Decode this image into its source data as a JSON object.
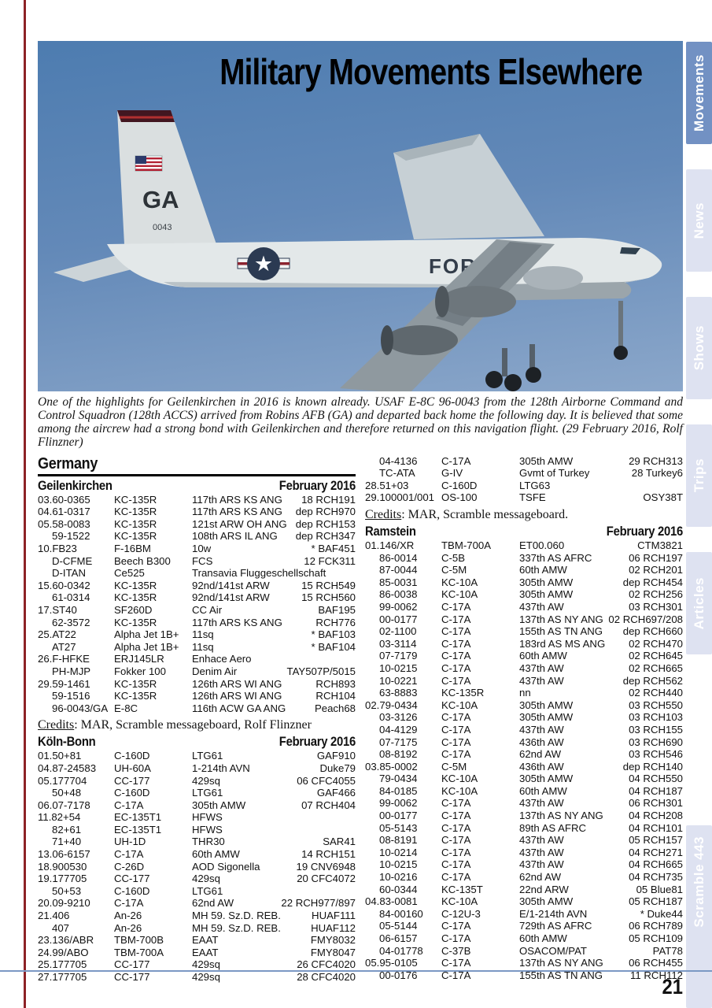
{
  "page": {
    "number": "21"
  },
  "header": {
    "title": "Military Movements Elsewhere"
  },
  "sidebar": {
    "active_color": "#7291c3",
    "inactive_color": "#dee2f1",
    "tabs": [
      {
        "label": "Movements",
        "active": true
      },
      {
        "label": "News",
        "active": false
      },
      {
        "label": "Shows",
        "active": false
      },
      {
        "label": "Trips",
        "active": false
      },
      {
        "label": "Articles",
        "active": false
      },
      {
        "label": "Scramble 443",
        "active": false
      }
    ]
  },
  "photo": {
    "tail_code": "GA",
    "tail_serial": "0043",
    "fuselage_text": "FORCE",
    "roundel": "us-star-roundel",
    "caption": "One of the highlights for Geilenkirchen in 2016 is known already. USAF E-8C 96-0043 from the 128th Airborne Command and Control Squadron (128th ACCS) arrived from Robins AFB (GA) and departed back home the following day. It is believed that some among the aircrew had a strong bond with Geilenkirchen and therefore returned on this navigation flight. (29 February 2016, Rolf Flinzner)"
  },
  "country_header": {
    "label": "Germany"
  },
  "credits": {
    "geilenkirchen": {
      "label": "Credits",
      "text": ": MAR, Scramble messageboard, Rolf Flinzner"
    },
    "koln_bonn": {
      "label": "Credits",
      "text": ": MAR, Scramble messageboard."
    }
  },
  "tables": {
    "geilenkirchen": {
      "location": "Geilenkirchen",
      "period": "February 2016",
      "rows": [
        [
          "03.60-0365",
          "KC-135R",
          "117th ARS KS ANG",
          "18 RCH191"
        ],
        [
          "04.61-0317",
          "KC-135R",
          "117th ARS KS ANG",
          "dep RCH970"
        ],
        [
          "05.58-0083",
          "KC-135R",
          "121st ARW OH ANG",
          "dep RCH153"
        ],
        [
          "59-1522",
          "KC-135R",
          "108th ARS IL ANG",
          "dep RCH347"
        ],
        [
          "10.FB23",
          "F-16BM",
          "10w",
          "* BAF451"
        ],
        [
          "D-CFME",
          "Beech B300",
          "FCS",
          "12 FCK311"
        ],
        [
          "D-ITAN",
          "Ce525",
          "Transavia Fluggeschellschaft",
          ""
        ],
        [
          "15.60-0342",
          "KC-135R",
          "92nd/141st ARW",
          "15 RCH549"
        ],
        [
          "61-0314",
          "KC-135R",
          "92nd/141st ARW",
          "15 RCH560"
        ],
        [
          "17.ST40",
          "SF260D",
          "CC Air",
          "BAF195"
        ],
        [
          "62-3572",
          "KC-135R",
          "117th ARS KS ANG",
          "RCH776"
        ],
        [
          "25.AT22",
          "Alpha Jet 1B+",
          "11sq",
          "* BAF103"
        ],
        [
          "AT27",
          "Alpha Jet 1B+",
          "11sq",
          "* BAF104"
        ],
        [
          "26.F-HFKE",
          "ERJ145LR",
          "Enhace Aero",
          ""
        ],
        [
          "PH-MJP",
          "Fokker 100",
          "Denim Air",
          "TAY507P/5015"
        ],
        [
          "29.59-1461",
          "KC-135R",
          "126th ARS WI ANG",
          "RCH893"
        ],
        [
          "59-1516",
          "KC-135R",
          "126th ARS WI ANG",
          "RCH104"
        ],
        [
          "96-0043/GA",
          "E-8C",
          "116th ACW GA ANG",
          "Peach68"
        ]
      ]
    },
    "koln_bonn": {
      "location": "Köln-Bonn",
      "period": "February 2016",
      "rows": [
        [
          "01.50+81",
          "C-160D",
          "LTG61",
          "GAF910"
        ],
        [
          "04.87-24583",
          "UH-60A",
          "1-214th AVN",
          "Duke79"
        ],
        [
          "05.177704",
          "CC-177",
          "429sq",
          "06 CFC4055"
        ],
        [
          "50+48",
          "C-160D",
          "LTG61",
          "GAF466"
        ],
        [
          "06.07-7178",
          "C-17A",
          "305th AMW",
          "07 RCH404"
        ],
        [
          "11.82+54",
          "EC-135T1",
          "HFWS",
          ""
        ],
        [
          "82+61",
          "EC-135T1",
          "HFWS",
          ""
        ],
        [
          "71+40",
          "UH-1D",
          "THR30",
          "SAR41"
        ],
        [
          "13.06-6157",
          "C-17A",
          "60th AMW",
          "14 RCH151"
        ],
        [
          "18.900530",
          "C-26D",
          "AOD Sigonella",
          "19 CNV6948"
        ],
        [
          "19.177705",
          "CC-177",
          "429sq",
          "20 CFC4072"
        ],
        [
          "50+53",
          "C-160D",
          "LTG61",
          ""
        ],
        [
          "20.09-9210",
          "C-17A",
          "62nd AW",
          "22 RCH977/897"
        ],
        [
          "21.406",
          "An-26",
          "MH 59. Sz.D. REB.",
          "HUAF111"
        ],
        [
          "407",
          "An-26",
          "MH 59. Sz.D. REB.",
          "HUAF112"
        ],
        [
          "23.136/ABR",
          "TBM-700B",
          "EAAT",
          "FMY8032"
        ],
        [
          "24.99/ABO",
          "TBM-700A",
          "EAAT",
          "FMY8047"
        ],
        [
          "25.177705",
          "CC-177",
          "429sq",
          "26 CFC4020"
        ],
        [
          "27.177705",
          "CC-177",
          "429sq",
          "28 CFC4020"
        ]
      ]
    },
    "koln_bonn_cont": {
      "rows": [
        [
          "04-4136",
          "C-17A",
          "305th AMW",
          "29 RCH313"
        ],
        [
          "TC-ATA",
          "G-IV",
          "Gvmt of Turkey",
          "28 Turkey6"
        ],
        [
          "28.51+03",
          "C-160D",
          "LTG63",
          ""
        ],
        [
          "29.100001/001",
          "OS-100",
          "TSFE",
          "OSY38T"
        ]
      ]
    },
    "ramstein": {
      "location": "Ramstein",
      "period": "February 2016",
      "rows": [
        [
          "01.146/XR",
          "TBM-700A",
          "ET00.060",
          "CTM3821"
        ],
        [
          "86-0014",
          "C-5B",
          "337th AS AFRC",
          "06 RCH197"
        ],
        [
          "87-0044",
          "C-5M",
          "60th AMW",
          "02 RCH201"
        ],
        [
          "85-0031",
          "KC-10A",
          "305th AMW",
          "dep RCH454"
        ],
        [
          "86-0038",
          "KC-10A",
          "305th AMW",
          "02 RCH256"
        ],
        [
          "99-0062",
          "C-17A",
          "437th AW",
          "03 RCH301"
        ],
        [
          "00-0177",
          "C-17A",
          "137th AS NY ANG",
          "02 RCH697/208"
        ],
        [
          "02-1100",
          "C-17A",
          "155th AS TN ANG",
          "dep RCH660"
        ],
        [
          "03-3114",
          "C-17A",
          "183rd AS MS ANG",
          "02 RCH470"
        ],
        [
          "07-7179",
          "C-17A",
          "60th AMW",
          "02 RCH645"
        ],
        [
          "10-0215",
          "C-17A",
          "437th AW",
          "02 RCH665"
        ],
        [
          "10-0221",
          "C-17A",
          "437th AW",
          "dep RCH562"
        ],
        [
          "63-8883",
          "KC-135R",
          "nn",
          "02 RCH440"
        ],
        [
          "02.79-0434",
          "KC-10A",
          "305th AMW",
          "03 RCH550"
        ],
        [
          "03-3126",
          "C-17A",
          "305th AMW",
          "03 RCH103"
        ],
        [
          "04-4129",
          "C-17A",
          "437th AW",
          "03 RCH155"
        ],
        [
          "07-7175",
          "C-17A",
          "436th AW",
          "03 RCH690"
        ],
        [
          "08-8192",
          "C-17A",
          "62nd AW",
          "03 RCH546"
        ],
        [
          "03.85-0002",
          "C-5M",
          "436th AW",
          "dep RCH140"
        ],
        [
          "79-0434",
          "KC-10A",
          "305th AMW",
          "04 RCH550"
        ],
        [
          "84-0185",
          "KC-10A",
          "60th AMW",
          "04 RCH187"
        ],
        [
          "99-0062",
          "C-17A",
          "437th AW",
          "06 RCH301"
        ],
        [
          "00-0177",
          "C-17A",
          "137th AS NY ANG",
          "04 RCH208"
        ],
        [
          "05-5143",
          "C-17A",
          "89th AS AFRC",
          "04 RCH101"
        ],
        [
          "08-8191",
          "C-17A",
          "437th AW",
          "05 RCH157"
        ],
        [
          "10-0214",
          "C-17A",
          "437th AW",
          "04 RCH271"
        ],
        [
          "10-0215",
          "C-17A",
          "437th AW",
          "04 RCH665"
        ],
        [
          "10-0216",
          "C-17A",
          "62nd AW",
          "04 RCH735"
        ],
        [
          "60-0344",
          "KC-135T",
          "22nd ARW",
          "05 Blue81"
        ],
        [
          "04.83-0081",
          "KC-10A",
          "305th AMW",
          "05 RCH187"
        ],
        [
          "84-00160",
          "C-12U-3",
          "E/1-214th AVN",
          "* Duke44"
        ],
        [
          "05-5144",
          "C-17A",
          "729th AS AFRC",
          "06 RCH789"
        ],
        [
          "06-6157",
          "C-17A",
          "60th AMW",
          "05 RCH109"
        ],
        [
          "04-01778",
          "C-37B",
          "OSACOM/PAT",
          "PAT78"
        ],
        [
          "05.95-0105",
          "C-17A",
          "137th AS NY ANG",
          "06 RCH455"
        ],
        [
          "00-0176",
          "C-17A",
          "155th AS TN ANG",
          "11 RCH112"
        ]
      ]
    }
  }
}
